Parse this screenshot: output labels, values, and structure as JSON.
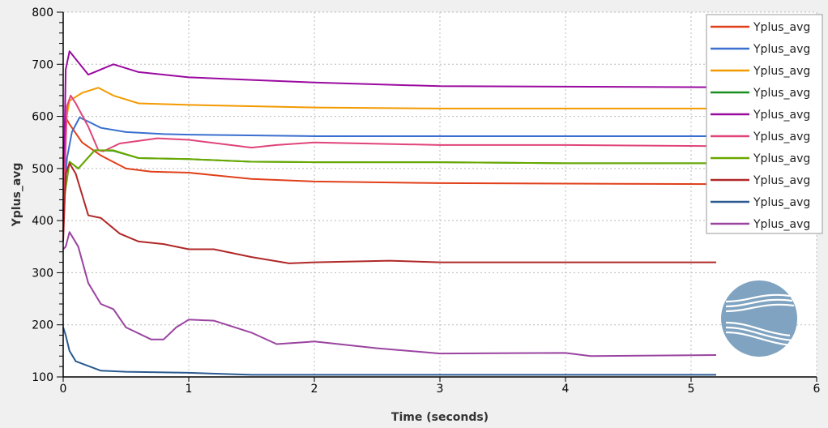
{
  "chart_data": {
    "type": "line",
    "title": "",
    "xlabel": "Time (seconds)",
    "ylabel": "Yplus_avg",
    "xlim": [
      0,
      6
    ],
    "ylim": [
      100,
      800
    ],
    "xticks": [
      0,
      1,
      2,
      3,
      4,
      5,
      6
    ],
    "yticks": [
      100,
      200,
      300,
      400,
      500,
      600,
      700,
      800
    ],
    "grid": true,
    "legend": "top-right",
    "series": [
      {
        "name": "Yplus_avg",
        "color": "#e0401a",
        "x": [
          0,
          0.02,
          0.05,
          0.15,
          0.3,
          0.5,
          0.7,
          1,
          1.5,
          2,
          3,
          4,
          5.2
        ],
        "y": [
          380,
          598,
          585,
          550,
          525,
          500,
          494,
          492,
          480,
          475,
          472,
          471,
          470
        ]
      },
      {
        "name": "Yplus_avg",
        "color": "#3a6fd0",
        "x": [
          0,
          0.03,
          0.07,
          0.13,
          0.2,
          0.3,
          0.5,
          0.8,
          1,
          2,
          3,
          4,
          5.2
        ],
        "y": [
          420,
          520,
          570,
          598,
          590,
          578,
          570,
          566,
          565,
          562,
          562,
          562,
          562
        ]
      },
      {
        "name": "Yplus_avg",
        "color": "#f39a00",
        "x": [
          0,
          0.02,
          0.05,
          0.15,
          0.28,
          0.4,
          0.6,
          1,
          2,
          3,
          4,
          5.2
        ],
        "y": [
          520,
          590,
          630,
          645,
          655,
          640,
          625,
          622,
          617,
          615,
          615,
          615
        ]
      },
      {
        "name": "Yplus_avg",
        "color": "#1a9020",
        "x": [
          0,
          0.05,
          0.12,
          0.25,
          0.4,
          0.6,
          1,
          1.5,
          2,
          3,
          4,
          5.2
        ],
        "y": [
          430,
          513,
          500,
          535,
          534,
          520,
          518,
          513,
          512,
          512,
          510,
          510
        ]
      },
      {
        "name": "Yplus_avg",
        "color": "#9a0aa0",
        "x": [
          0,
          0.02,
          0.05,
          0.1,
          0.2,
          0.25,
          0.4,
          0.6,
          1,
          1.5,
          2,
          3,
          4,
          5.2
        ],
        "y": [
          400,
          690,
          725,
          710,
          680,
          685,
          700,
          685,
          675,
          670,
          665,
          658,
          657,
          656
        ]
      },
      {
        "name": "Yplus_avg",
        "color": "#e0447a",
        "x": [
          0,
          0.03,
          0.06,
          0.1,
          0.2,
          0.28,
          0.32,
          0.45,
          0.75,
          1,
          1.5,
          1.7,
          2,
          3,
          4,
          5.2
        ],
        "y": [
          400,
          620,
          640,
          625,
          580,
          535,
          533,
          548,
          558,
          555,
          540,
          545,
          550,
          545,
          545,
          543
        ]
      },
      {
        "name": "Yplus_avg",
        "color": "#6aa800",
        "x": [
          0,
          0.05,
          0.12,
          0.25,
          0.4,
          0.6,
          1,
          1.5,
          2,
          3,
          4,
          5.2
        ],
        "y": [
          430,
          513,
          500,
          535,
          535,
          520,
          518,
          513,
          512,
          512,
          510,
          510
        ]
      },
      {
        "name": "Yplus_avg",
        "color": "#b02828",
        "x": [
          0,
          0.02,
          0.05,
          0.1,
          0.2,
          0.3,
          0.45,
          0.6,
          0.8,
          1,
          1.2,
          1.5,
          1.8,
          2,
          2.6,
          3,
          4,
          5.2
        ],
        "y": [
          360,
          490,
          510,
          490,
          410,
          405,
          375,
          360,
          355,
          345,
          345,
          330,
          318,
          320,
          323,
          320,
          320,
          320
        ]
      },
      {
        "name": "Yplus_avg",
        "color": "#2a5a90",
        "x": [
          0,
          0.02,
          0.05,
          0.1,
          0.3,
          0.5,
          1,
          1.5,
          3,
          5.2
        ],
        "y": [
          195,
          180,
          150,
          130,
          112,
          110,
          108,
          104,
          104,
          104
        ]
      },
      {
        "name": "Yplus_avg",
        "color": "#9a44a0",
        "x": [
          0,
          0.02,
          0.05,
          0.12,
          0.2,
          0.3,
          0.4,
          0.5,
          0.7,
          0.8,
          0.9,
          1,
          1.2,
          1.5,
          1.7,
          2,
          2.5,
          3,
          4,
          4.2,
          5.2
        ],
        "y": [
          345,
          350,
          378,
          350,
          280,
          240,
          230,
          195,
          172,
          172,
          195,
          210,
          208,
          185,
          163,
          168,
          155,
          145,
          146,
          140,
          142
        ]
      }
    ]
  },
  "logo": {
    "color": "#7fa3c0"
  }
}
